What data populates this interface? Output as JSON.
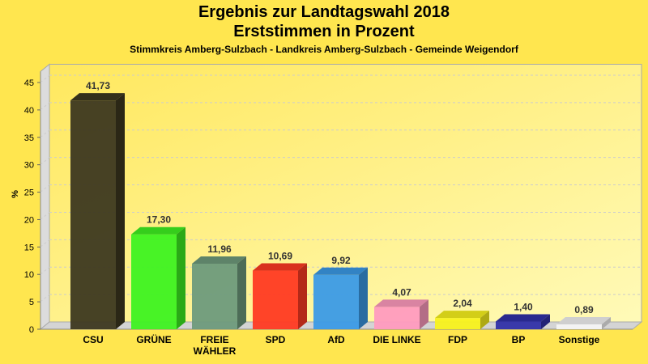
{
  "header": {
    "title": "Ergebnis zur Landtagswahl 2018",
    "subtitle": "Erststimmen in Prozent",
    "location": "Stimmkreis Amberg-Sulzbach - Landkreis Amberg-Sulzbach - Gemeinde Weigendorf"
  },
  "chart_data": {
    "type": "bar",
    "title": "Ergebnis zur Landtagswahl 2018 - Erststimmen in Prozent",
    "subtitle": "Stimmkreis Amberg-Sulzbach - Landkreis Amberg-Sulzbach - Gemeinde Weigendorf",
    "xlabel": "",
    "ylabel": "%",
    "ylim": [
      0,
      47
    ],
    "yticks": [
      0,
      5,
      10,
      15,
      20,
      25,
      30,
      35,
      40,
      45
    ],
    "grid": true,
    "categories": [
      "CSU",
      "GRÜNE",
      "FREIE WÄHLER",
      "SPD",
      "AfD",
      "DIE LINKE",
      "FDP",
      "BP",
      "Sonstige"
    ],
    "category_lines": [
      [
        "CSU"
      ],
      [
        "GRÜNE"
      ],
      [
        "FREIE",
        "WÄHLER"
      ],
      [
        "SPD"
      ],
      [
        "AfD"
      ],
      [
        "DIE LINKE"
      ],
      [
        "FDP"
      ],
      [
        "BP"
      ],
      [
        "Sonstige"
      ]
    ],
    "values": [
      41.73,
      17.3,
      11.96,
      10.69,
      9.92,
      4.07,
      2.04,
      1.4,
      0.89
    ],
    "value_labels": [
      "41,73",
      "17,30",
      "11,96",
      "10,69",
      "9,92",
      "4,07",
      "2,04",
      "1,40",
      "0,89"
    ],
    "colors": [
      "#3d3820",
      "#3ef221",
      "#6e9a7c",
      "#ff3a22",
      "#3b9ae6",
      "#ff9bbf",
      "#f8f21c",
      "#3030a8",
      "#f4f4f4"
    ]
  }
}
